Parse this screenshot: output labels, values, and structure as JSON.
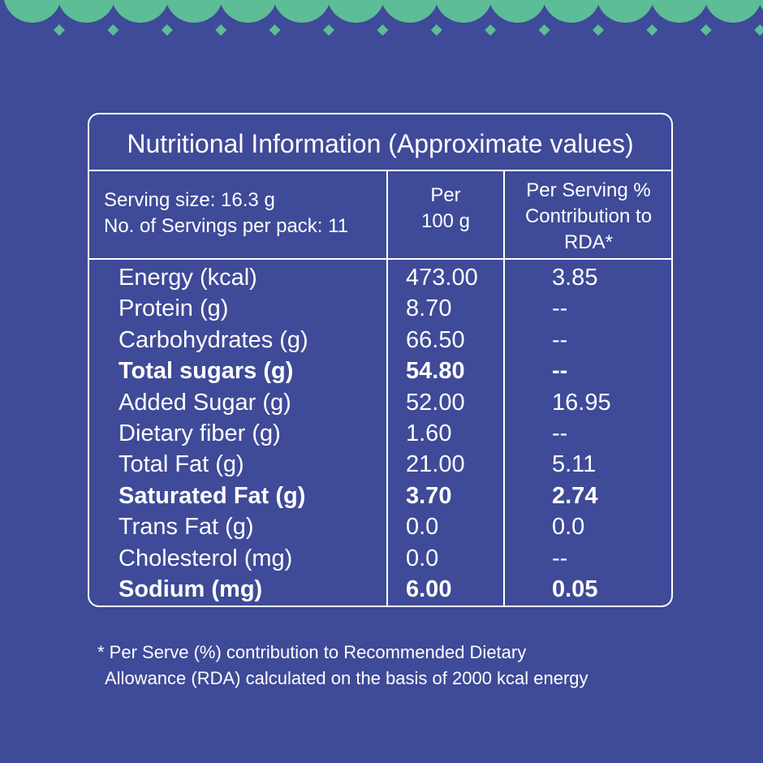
{
  "colors": {
    "background": "#3f4a98",
    "border_accent": "#5dbd96",
    "text": "#ffffff"
  },
  "table": {
    "title": "Nutritional Information (Approximate values)",
    "serving_size": "Serving size: 16.3 g",
    "servings_per_pack": "No. of Servings per pack: 11",
    "per_100g_header": [
      "Per",
      "100 g"
    ],
    "rda_header": [
      "Per Serving %",
      "Contribution to",
      "RDA*"
    ],
    "rows": [
      {
        "name": "Energy (kcal)",
        "per_100g": "473.00",
        "rda": "3.85",
        "bold": false
      },
      {
        "name": "Protein (g)",
        "per_100g": "8.70",
        "rda": "--",
        "bold": false
      },
      {
        "name": "Carbohydrates (g)",
        "per_100g": "66.50",
        "rda": "--",
        "bold": false
      },
      {
        "name": "Total sugars (g)",
        "per_100g": "54.80",
        "rda": "--",
        "bold": true
      },
      {
        "name": "Added Sugar (g)",
        "per_100g": "52.00",
        "rda": "16.95",
        "bold": false
      },
      {
        "name": "Dietary fiber (g)",
        "per_100g": "1.60",
        "rda": "--",
        "bold": false
      },
      {
        "name": "Total Fat (g)",
        "per_100g": "21.00",
        "rda": "5.11",
        "bold": false
      },
      {
        "name": "Saturated Fat (g)",
        "per_100g": "3.70",
        "rda": "2.74",
        "bold": true
      },
      {
        "name": "Trans Fat (g)",
        "per_100g": "0.0",
        "rda": "0.0",
        "bold": false
      },
      {
        "name": "Cholesterol (mg)",
        "per_100g": "0.0",
        "rda": "--",
        "bold": false
      },
      {
        "name": "Sodium (mg)",
        "per_100g": "6.00",
        "rda": "0.05",
        "bold": true
      }
    ]
  },
  "footnote": [
    "* Per Serve (%) contribution to Recommended Dietary",
    "Allowance (RDA) calculated on the basis of 2000 kcal energy"
  ]
}
